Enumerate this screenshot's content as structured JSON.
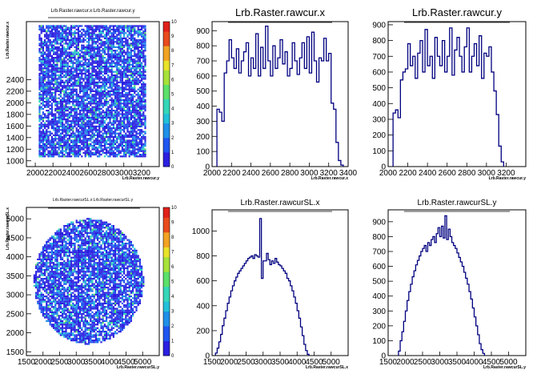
{
  "chart_data": [
    {
      "type": "heatmap",
      "title": "Lrb.Raster.rawcur.x:Lrb.Raster.rawcur.y",
      "xlabel": "Lrb.Raster.rawcur.y",
      "ylabel": "Lrb.Raster.rawcur.x",
      "xlim": [
        1900,
        3400
      ],
      "ylim": [
        900,
        3400
      ],
      "xticks": [
        "2000",
        "2200",
        "2400",
        "2600",
        "2800",
        "3000",
        "3200"
      ],
      "yticks": [
        "1000",
        "1200",
        "1400",
        "1600",
        "1800",
        "2000",
        "2200",
        "2400"
      ],
      "zlim": [
        0,
        10
      ],
      "zticks": [
        "0",
        "1",
        "2",
        "3",
        "4",
        "5",
        "6",
        "7",
        "8",
        "9",
        "10"
      ],
      "region": {
        "shape": "rectangle",
        "x": [
          2040,
          3260
        ],
        "y": [
          1060,
          3340
        ]
      }
    },
    {
      "type": "bar",
      "title": "Lrb.Raster.rawcur.x",
      "xlabel": "Lrb.Raster.rawcur.x",
      "xlim": [
        2000,
        3400
      ],
      "ylim": [
        0,
        960
      ],
      "xticks": [
        "2000",
        "2200",
        "2400",
        "2600",
        "2800",
        "3000",
        "3200",
        "3400"
      ],
      "yticks": [
        "0",
        "100",
        "200",
        "300",
        "400",
        "500",
        "600",
        "700",
        "800",
        "900"
      ],
      "bin_start": 2050,
      "bin_width": 25,
      "values": [
        380,
        360,
        300,
        620,
        700,
        840,
        720,
        650,
        780,
        620,
        700,
        760,
        820,
        600,
        720,
        650,
        880,
        600,
        790,
        650,
        930,
        700,
        600,
        800,
        650,
        720,
        840,
        680,
        760,
        600,
        650,
        820,
        700,
        610,
        720,
        820,
        650,
        860,
        620,
        890,
        700,
        560,
        720,
        700,
        850,
        700,
        750,
        420,
        380,
        160,
        40,
        10
      ]
    },
    {
      "type": "bar",
      "title": "Lrb.Raster.rawcur.y",
      "xlabel": "Lrb.Raster.rawcur.y",
      "xlim": [
        2000,
        3400
      ],
      "ylim": [
        0,
        920
      ],
      "xticks": [
        "2000",
        "2200",
        "2400",
        "2600",
        "2800",
        "3000",
        "3200"
      ],
      "yticks": [
        "0",
        "100",
        "200",
        "300",
        "400",
        "500",
        "600",
        "700",
        "800",
        "900"
      ],
      "bin_start": 2050,
      "bin_width": 25,
      "values": [
        340,
        360,
        310,
        550,
        600,
        620,
        780,
        640,
        700,
        560,
        720,
        800,
        600,
        870,
        640,
        700,
        560,
        820,
        700,
        640,
        800,
        600,
        700,
        880,
        580,
        740,
        820,
        700,
        600,
        760,
        880,
        600,
        700,
        780,
        640,
        830,
        560,
        720,
        700,
        760,
        600,
        480,
        330,
        130,
        30
      ]
    },
    {
      "type": "heatmap",
      "title": "Lrb.Raster.rawcurSL.x:Lrb.Raster.rawcurSL.y",
      "xlabel": "Lrb.Raster.rawcurSL.y",
      "ylabel": "Lrb.Raster.rawcurSL.x",
      "xlim": [
        1500,
        5500
      ],
      "ylim": [
        1400,
        5300
      ],
      "xticks": [
        "1500",
        "2000",
        "2500",
        "3000",
        "3500",
        "4000",
        "4500",
        "5000"
      ],
      "yticks": [
        "1500",
        "2000",
        "2500",
        "3000",
        "3500",
        "4000",
        "4500",
        "5000"
      ],
      "zlim": [
        0,
        10
      ],
      "zticks": [
        "0",
        "1",
        "2",
        "3",
        "4",
        "5",
        "6",
        "7",
        "8",
        "9",
        "10"
      ],
      "region": {
        "shape": "circle",
        "cx": 3380,
        "cy": 3350,
        "r": 1650
      }
    },
    {
      "type": "bar",
      "title": "Lrb.Raster.rawcurSL.x",
      "xlabel": "Lrb.Raster.rawcurSL.x",
      "xlim": [
        1500,
        5500
      ],
      "ylim": [
        0,
        1170
      ],
      "xticks": [
        "1500",
        "2000",
        "2500",
        "3000",
        "3500",
        "4000",
        "4500",
        "5000"
      ],
      "yticks": [
        "0",
        "200",
        "400",
        "600",
        "800",
        "1000"
      ],
      "bin_start": 1600,
      "bin_width": 50,
      "values": [
        20,
        60,
        110,
        170,
        240,
        300,
        360,
        420,
        470,
        520,
        560,
        600,
        630,
        660,
        680,
        700,
        720,
        740,
        760,
        780,
        790,
        800,
        780,
        810,
        800,
        790,
        1100,
        620,
        760,
        760,
        820,
        770,
        730,
        760,
        740,
        780,
        750,
        730,
        720,
        700,
        680,
        660,
        620,
        600,
        560,
        520,
        470,
        420,
        360,
        300,
        230,
        160,
        90,
        40,
        10
      ]
    },
    {
      "type": "bar",
      "title": "Lrb.Raster.rawcurSL.y",
      "xlabel": "Lrb.Raster.rawcurSL.y",
      "xlim": [
        1500,
        5500
      ],
      "ylim": [
        0,
        980
      ],
      "xticks": [
        "1500",
        "2000",
        "2500",
        "3000",
        "3500",
        "4000",
        "4500",
        "5000"
      ],
      "yticks": [
        "0",
        "100",
        "200",
        "300",
        "400",
        "500",
        "600",
        "700",
        "800",
        "900"
      ],
      "bin_start": 1800,
      "bin_width": 50,
      "values": [
        30,
        100,
        160,
        230,
        300,
        370,
        430,
        480,
        530,
        570,
        610,
        640,
        670,
        700,
        720,
        740,
        700,
        760,
        740,
        780,
        800,
        760,
        820,
        860,
        800,
        870,
        790,
        940,
        780,
        850,
        800,
        760,
        740,
        720,
        690,
        660,
        630,
        600,
        560,
        520,
        480,
        430,
        380,
        320,
        260,
        200,
        140,
        80,
        40,
        15
      ]
    }
  ]
}
